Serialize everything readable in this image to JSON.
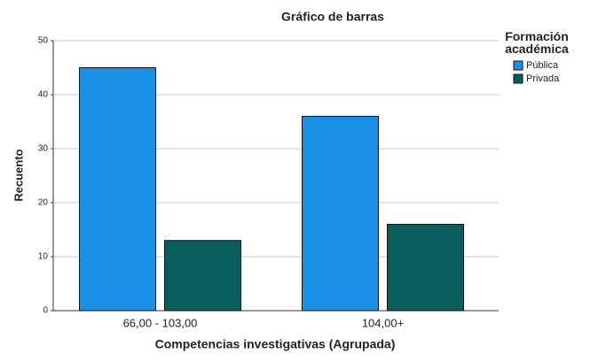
{
  "chart_data": {
    "type": "bar",
    "title": "Gráfico de barras",
    "x_label": "Competencias investigativas  (Agrupada)",
    "y_label": "Recuento",
    "legend_title": "Formación académica",
    "categories": [
      "66,00 - 103,00",
      "104,00+"
    ],
    "series": [
      {
        "name": "Pública",
        "color": "#1a8fe6",
        "values": [
          45,
          36
        ]
      },
      {
        "name": "Privada",
        "color": "#075e5c",
        "values": [
          13,
          16
        ]
      }
    ],
    "ylim": [
      0,
      50
    ],
    "yticks": [
      0,
      10,
      20,
      30,
      40,
      50
    ],
    "grid": true
  }
}
